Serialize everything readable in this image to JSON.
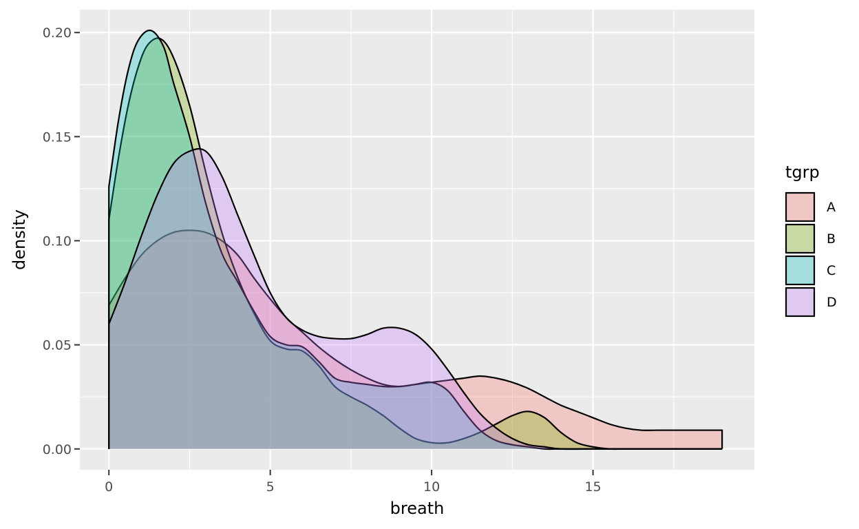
{
  "chart_data": {
    "type": "area",
    "subtype": "density",
    "xlabel": "breath",
    "ylabel": "density",
    "xlim": [
      -0.9,
      20
    ],
    "ylim": [
      -0.01,
      0.211
    ],
    "x_ticks": [
      0,
      5,
      10,
      15
    ],
    "x_tick_labels": [
      "0",
      "5",
      "10",
      "15"
    ],
    "y_ticks": [
      0.0,
      0.05,
      0.1,
      0.15,
      0.2
    ],
    "y_tick_labels": [
      "0.00",
      "0.05",
      "0.10",
      "0.15",
      "0.20"
    ],
    "grid": true,
    "background": "#ebebeb",
    "legend": {
      "title": "tgrp",
      "position": "right",
      "entries": [
        "A",
        "B",
        "C",
        "D"
      ]
    },
    "fill_alpha": 0.3,
    "series": [
      {
        "name": "A",
        "color": "#F8766D",
        "points": [
          [
            0,
            0.069
          ],
          [
            0.5,
            0.082
          ],
          [
            1,
            0.093
          ],
          [
            1.5,
            0.1
          ],
          [
            2,
            0.104
          ],
          [
            2.5,
            0.105
          ],
          [
            3,
            0.104
          ],
          [
            3.5,
            0.1
          ],
          [
            4,
            0.093
          ],
          [
            4.5,
            0.082
          ],
          [
            5,
            0.072
          ],
          [
            5.5,
            0.063
          ],
          [
            6,
            0.056
          ],
          [
            6.5,
            0.049
          ],
          [
            7,
            0.043
          ],
          [
            7.5,
            0.038
          ],
          [
            8,
            0.034
          ],
          [
            8.5,
            0.031
          ],
          [
            9,
            0.03
          ],
          [
            9.5,
            0.031
          ],
          [
            10,
            0.032
          ],
          [
            10.5,
            0.033
          ],
          [
            11,
            0.034
          ],
          [
            11.5,
            0.035
          ],
          [
            12,
            0.034
          ],
          [
            12.5,
            0.032
          ],
          [
            13,
            0.029
          ],
          [
            13.5,
            0.025
          ],
          [
            14,
            0.021
          ],
          [
            14.5,
            0.018
          ],
          [
            15,
            0.015
          ],
          [
            15.5,
            0.012
          ],
          [
            16,
            0.01
          ],
          [
            16.5,
            0.009
          ],
          [
            17,
            0.009
          ],
          [
            17.5,
            0.009
          ],
          [
            18,
            0.009
          ],
          [
            18.5,
            0.009
          ],
          [
            19,
            0.009
          ]
        ]
      },
      {
        "name": "B",
        "color": "#7CAE00",
        "points": [
          [
            0,
            0.11
          ],
          [
            0.3,
            0.14
          ],
          [
            0.6,
            0.165
          ],
          [
            0.9,
            0.183
          ],
          [
            1.2,
            0.194
          ],
          [
            1.6,
            0.197
          ],
          [
            2,
            0.188
          ],
          [
            2.5,
            0.165
          ],
          [
            3,
            0.133
          ],
          [
            3.5,
            0.104
          ],
          [
            4,
            0.082
          ],
          [
            4.5,
            0.065
          ],
          [
            5,
            0.052
          ],
          [
            5.5,
            0.048
          ],
          [
            6,
            0.047
          ],
          [
            6.5,
            0.04
          ],
          [
            7,
            0.03
          ],
          [
            7.5,
            0.025
          ],
          [
            8,
            0.021
          ],
          [
            8.5,
            0.016
          ],
          [
            9,
            0.01
          ],
          [
            9.5,
            0.005
          ],
          [
            10,
            0.003
          ],
          [
            10.5,
            0.003
          ],
          [
            11,
            0.005
          ],
          [
            11.5,
            0.008
          ],
          [
            12,
            0.012
          ],
          [
            12.5,
            0.016
          ],
          [
            13,
            0.018
          ],
          [
            13.5,
            0.015
          ],
          [
            14,
            0.008
          ],
          [
            14.5,
            0.003
          ],
          [
            15,
            0.001
          ],
          [
            15.5,
            0.0
          ],
          [
            16,
            0.0
          ],
          [
            17,
            0.0
          ],
          [
            18,
            0.0
          ],
          [
            19,
            0.0
          ]
        ]
      },
      {
        "name": "C",
        "color": "#00BFC4",
        "points": [
          [
            0,
            0.126
          ],
          [
            0.3,
            0.158
          ],
          [
            0.6,
            0.182
          ],
          [
            0.9,
            0.196
          ],
          [
            1.3,
            0.201
          ],
          [
            1.7,
            0.193
          ],
          [
            2,
            0.176
          ],
          [
            2.5,
            0.15
          ],
          [
            3,
            0.118
          ],
          [
            3.5,
            0.094
          ],
          [
            4,
            0.08
          ],
          [
            4.5,
            0.066
          ],
          [
            5,
            0.054
          ],
          [
            5.5,
            0.05
          ],
          [
            6,
            0.049
          ],
          [
            6.5,
            0.042
          ],
          [
            7,
            0.034
          ],
          [
            7.5,
            0.032
          ],
          [
            8,
            0.031
          ],
          [
            8.5,
            0.03
          ],
          [
            9,
            0.03
          ],
          [
            9.5,
            0.031
          ],
          [
            10,
            0.032
          ],
          [
            10.5,
            0.028
          ],
          [
            11,
            0.018
          ],
          [
            11.5,
            0.009
          ],
          [
            12,
            0.004
          ],
          [
            12.5,
            0.002
          ],
          [
            13,
            0.001
          ],
          [
            13.5,
            0.0
          ],
          [
            14,
            0.0
          ],
          [
            15,
            0.0
          ],
          [
            16,
            0.0
          ],
          [
            17,
            0.0
          ],
          [
            18,
            0.0
          ],
          [
            19,
            0.0
          ]
        ]
      },
      {
        "name": "D",
        "color": "#C77CFF",
        "points": [
          [
            0,
            0.06
          ],
          [
            0.5,
            0.08
          ],
          [
            1,
            0.102
          ],
          [
            1.5,
            0.122
          ],
          [
            2,
            0.137
          ],
          [
            2.5,
            0.143
          ],
          [
            3,
            0.143
          ],
          [
            3.5,
            0.131
          ],
          [
            4,
            0.112
          ],
          [
            4.5,
            0.093
          ],
          [
            5,
            0.075
          ],
          [
            5.5,
            0.063
          ],
          [
            6,
            0.057
          ],
          [
            6.5,
            0.054
          ],
          [
            7,
            0.053
          ],
          [
            7.5,
            0.053
          ],
          [
            8,
            0.055
          ],
          [
            8.5,
            0.058
          ],
          [
            9,
            0.058
          ],
          [
            9.5,
            0.055
          ],
          [
            10,
            0.048
          ],
          [
            10.5,
            0.038
          ],
          [
            11,
            0.027
          ],
          [
            11.5,
            0.017
          ],
          [
            12,
            0.01
          ],
          [
            12.5,
            0.005
          ],
          [
            13,
            0.002
          ],
          [
            13.5,
            0.001
          ],
          [
            14,
            0.0
          ],
          [
            15,
            0.0
          ],
          [
            16,
            0.0
          ],
          [
            17,
            0.0
          ],
          [
            18,
            0.0
          ],
          [
            19,
            0.0
          ]
        ]
      }
    ]
  }
}
